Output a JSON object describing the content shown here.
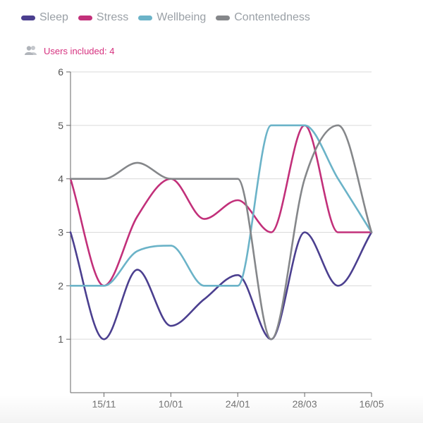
{
  "legend": [
    {
      "label": "Sleep",
      "color": "#4b3f8f"
    },
    {
      "label": "Stress",
      "color": "#c2307a"
    },
    {
      "label": "Wellbeing",
      "color": "#6bb3c8"
    },
    {
      "label": "Contentedness",
      "color": "#85878a"
    }
  ],
  "users": {
    "icon": "users-icon",
    "text": "Users included: 4"
  },
  "chart_data": {
    "type": "line",
    "x": [
      0,
      1,
      2,
      3,
      4,
      5,
      6,
      7,
      8,
      9
    ],
    "x_tick_labels": [
      "15/11",
      "10/01",
      "24/01",
      "28/03",
      "16/05"
    ],
    "x_tick_positions": [
      1,
      3,
      5,
      7,
      9
    ],
    "ylim": [
      0,
      6
    ],
    "yticks": [
      1,
      2,
      3,
      4,
      5,
      6
    ],
    "grid": true,
    "legend_position": "top-left",
    "series": [
      {
        "name": "Sleep",
        "color": "#4b3f8f",
        "values": [
          3,
          1,
          2.3,
          1.25,
          1.75,
          2.2,
          1,
          3,
          2,
          3
        ]
      },
      {
        "name": "Stress",
        "color": "#c2307a",
        "values": [
          4,
          2,
          3.3,
          4,
          3.25,
          3.6,
          3,
          5,
          3,
          3
        ]
      },
      {
        "name": "Wellbeing",
        "color": "#6bb3c8",
        "values": [
          2,
          2,
          2.65,
          2.75,
          2,
          2,
          5,
          5,
          4,
          3
        ]
      },
      {
        "name": "Contentedness",
        "color": "#85878a",
        "values": [
          4,
          4,
          4.3,
          4,
          4,
          4,
          1,
          4,
          5,
          3
        ]
      }
    ]
  }
}
